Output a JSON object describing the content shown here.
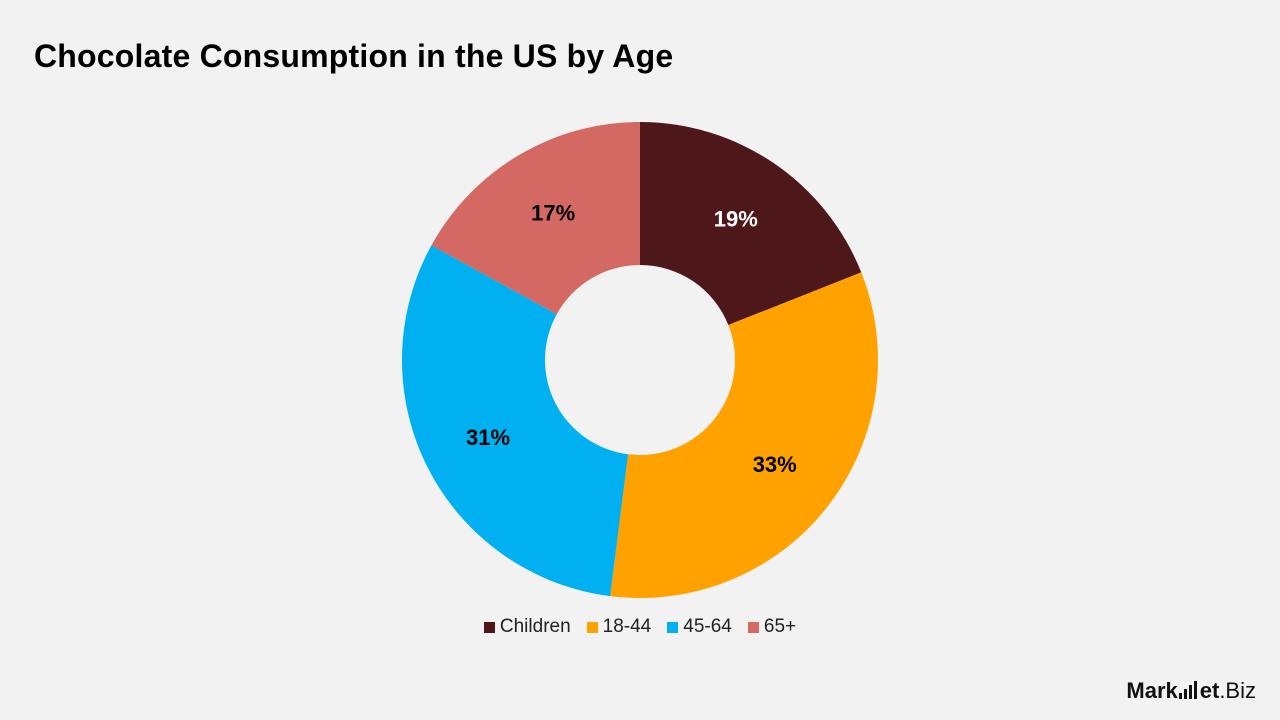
{
  "title": "Chocolate Consumption in the US by Age",
  "chart_data": {
    "type": "pie",
    "variant": "donut",
    "categories": [
      "Children",
      "18-44",
      "45-64",
      "65+"
    ],
    "values": [
      19,
      33,
      31,
      17
    ],
    "labels": [
      "19%",
      "33%",
      "31%",
      "17%"
    ],
    "colors": [
      "#4e1719",
      "#ffa200",
      "#00b0f0",
      "#d46862"
    ],
    "label_colors": [
      "#ffffff",
      "#000000",
      "#000000",
      "#000000"
    ],
    "legend_position": "bottom"
  },
  "legend": {
    "items": [
      {
        "label": "Children",
        "color": "#4e1719"
      },
      {
        "label": "18-44",
        "color": "#ffa200"
      },
      {
        "label": "45-64",
        "color": "#00b0f0"
      },
      {
        "label": "65+",
        "color": "#d46862"
      }
    ]
  },
  "logo": {
    "main": "Mark",
    "main2": "et",
    "sub": ".Biz"
  }
}
